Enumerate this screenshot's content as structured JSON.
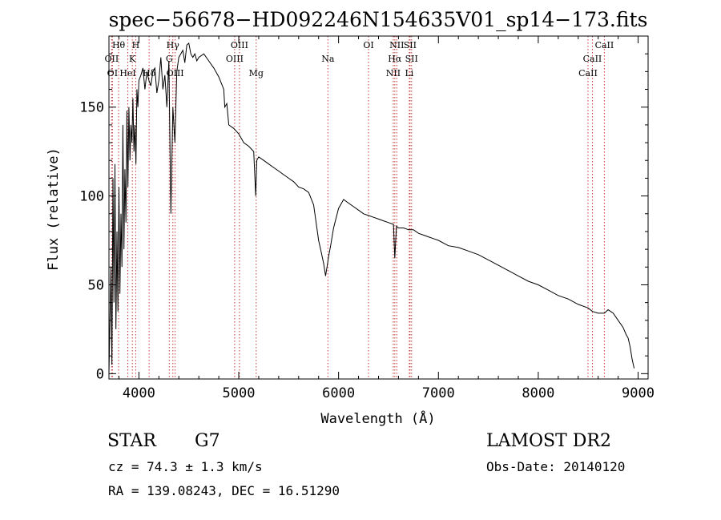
{
  "chart_data": {
    "type": "line",
    "title": "spec−56678−HD092246N154635V01_sp14−173.fits",
    "xlabel": "Wavelength (Å)",
    "ylabel": "Flux (relative)",
    "xlim": [
      3700,
      9100
    ],
    "ylim": [
      -3,
      190
    ],
    "xticks": [
      4000,
      5000,
      6000,
      7000,
      8000,
      9000
    ],
    "yticks": [
      0,
      50,
      100,
      150
    ],
    "grid": false,
    "series": [
      {
        "x": [
          3700,
          3720,
          3730,
          3740,
          3750,
          3760,
          3770,
          3780,
          3790,
          3800,
          3810,
          3820,
          3830,
          3840,
          3850,
          3860,
          3870,
          3880,
          3890,
          3900,
          3910,
          3920,
          3930,
          3940,
          3950,
          3960,
          3970,
          3980,
          3990,
          4000,
          4020,
          4040,
          4060,
          4080,
          4100,
          4120,
          4140,
          4160,
          4180,
          4200,
          4220,
          4240,
          4260,
          4280,
          4300,
          4320,
          4340,
          4360,
          4380,
          4400,
          4420,
          4440,
          4460,
          4480,
          4500,
          4520,
          4540,
          4560,
          4580,
          4600,
          4650,
          4700,
          4750,
          4800,
          4850,
          4860,
          4880,
          4900,
          4950,
          5000,
          5050,
          5100,
          5150,
          5170,
          5180,
          5200,
          5250,
          5300,
          5350,
          5400,
          5450,
          5500,
          5550,
          5600,
          5650,
          5700,
          5750,
          5800,
          5820,
          5850,
          5870,
          5890,
          5900,
          5920,
          5950,
          6000,
          6050,
          6100,
          6150,
          6200,
          6250,
          6300,
          6350,
          6400,
          6450,
          6500,
          6550,
          6563,
          6580,
          6600,
          6650,
          6700,
          6750,
          6800,
          6850,
          6900,
          6950,
          7000,
          7100,
          7200,
          7300,
          7400,
          7500,
          7600,
          7700,
          7800,
          7900,
          8000,
          8100,
          8200,
          8300,
          8400,
          8498,
          8542,
          8600,
          8662,
          8700,
          8750,
          8800,
          8850,
          8880,
          8900,
          8920,
          8940,
          8960
        ],
        "y": [
          0,
          60,
          5,
          110,
          40,
          118,
          25,
          80,
          35,
          105,
          45,
          90,
          60,
          140,
          70,
          115,
          85,
          148,
          105,
          150,
          120,
          140,
          130,
          155,
          125,
          140,
          118,
          160,
          150,
          165,
          168,
          172,
          160,
          170,
          165,
          162,
          170,
          172,
          158,
          165,
          178,
          160,
          168,
          150,
          176,
          90,
          150,
          130,
          170,
          178,
          180,
          182,
          175,
          185,
          186,
          180,
          178,
          180,
          176,
          178,
          180,
          176,
          172,
          167,
          160,
          150,
          152,
          140,
          138,
          135,
          130,
          128,
          125,
          100,
          120,
          122,
          120,
          118,
          116,
          114,
          112,
          110,
          108,
          105,
          104,
          102,
          95,
          75,
          70,
          62,
          55,
          62,
          66,
          72,
          82,
          93,
          98,
          96,
          94,
          92,
          90,
          89,
          88,
          87,
          86,
          85,
          84,
          65,
          83,
          82,
          82,
          81,
          81,
          79,
          78,
          77,
          76,
          75,
          72,
          71,
          69,
          67,
          64,
          61,
          58,
          55,
          52,
          50,
          47,
          44,
          42,
          39,
          37,
          35,
          34,
          34,
          36,
          34,
          30,
          26,
          22,
          20,
          15,
          8,
          3
        ]
      }
    ],
    "spectral_lines": [
      {
        "label": "Hθ",
        "x": 3797,
        "row": 1
      },
      {
        "label": "OII",
        "x": 3727,
        "row": 2
      },
      {
        "label": "OI",
        "x": 3735,
        "row": 3
      },
      {
        "label": "H",
        "x": 3968,
        "row": 1
      },
      {
        "label": "K",
        "x": 3934,
        "row": 2
      },
      {
        "label": "HeI",
        "x": 3889,
        "row": 3
      },
      {
        "label": "Hδ",
        "x": 4102,
        "row": 3
      },
      {
        "label": "Hγ",
        "x": 4340,
        "row": 1
      },
      {
        "label": "G",
        "x": 4304,
        "row": 2
      },
      {
        "label": "OIII",
        "x": 4363,
        "row": 3
      },
      {
        "label": "OIII",
        "x": 5007,
        "row": 1
      },
      {
        "label": "OIII",
        "x": 4959,
        "row": 2
      },
      {
        "label": "Mg",
        "x": 5175,
        "row": 3
      },
      {
        "label": "Na",
        "x": 5893,
        "row": 2
      },
      {
        "label": "OI",
        "x": 6300,
        "row": 1
      },
      {
        "label": "NII",
        "x": 6583,
        "row": 1
      },
      {
        "label": "Hα",
        "x": 6563,
        "row": 2
      },
      {
        "label": "NII",
        "x": 6548,
        "row": 3
      },
      {
        "label": "SII",
        "x": 6716,
        "row": 1
      },
      {
        "label": "SII",
        "x": 6731,
        "row": 2
      },
      {
        "label": "Li",
        "x": 6708,
        "row": 3
      },
      {
        "label": "CaII",
        "x": 8662,
        "row": 1
      },
      {
        "label": "CaII",
        "x": 8542,
        "row": 2
      },
      {
        "label": "CaII",
        "x": 8498,
        "row": 3
      }
    ]
  },
  "info": {
    "object_class": "STAR",
    "subclass": "G7",
    "redshift_line": "cz = 74.3 ± 1.3 km/s",
    "coords_line": "RA = 139.08243, DEC =  16.51290",
    "survey": "LAMOST DR2",
    "obs_date_line": "Obs-Date: 20140120"
  }
}
